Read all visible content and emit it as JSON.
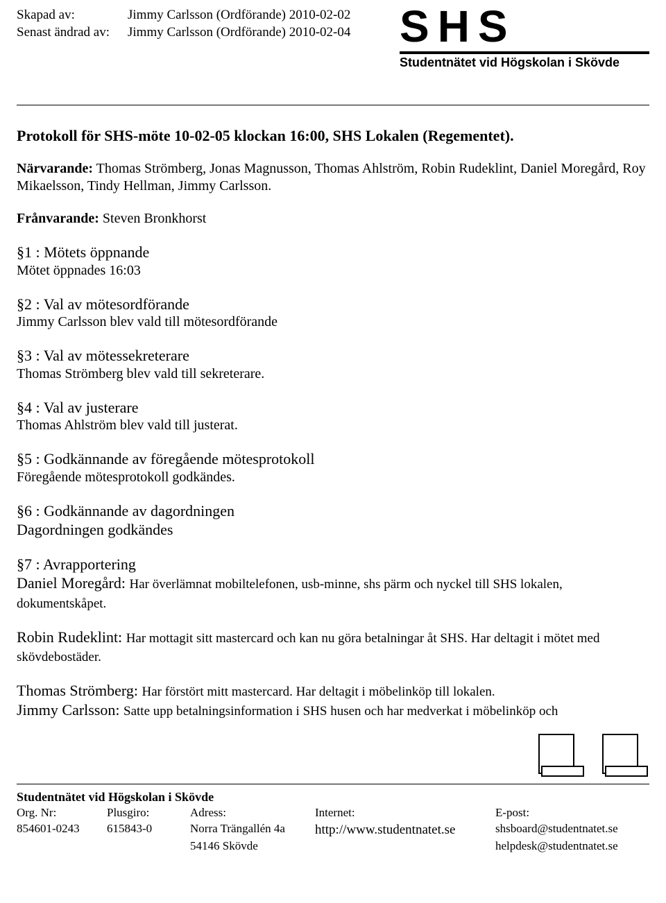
{
  "meta": {
    "created_label": "Skapad av:",
    "created_value": "Jimmy Carlsson (Ordförande) 2010-02-02",
    "modified_label": "Senast ändrad av:",
    "modified_value": "Jimmy Carlsson (Ordförande) 2010-02-04"
  },
  "logo": {
    "main": "SHS",
    "sub": "Studentnätet vid Högskolan i Skövde"
  },
  "title": "Protokoll för SHS-möte 10-02-05 klockan 16:00, SHS Lokalen (Regementet).",
  "narvarande_label": "Närvarande:",
  "narvarande_text": " Thomas Strömberg, Jonas Magnusson, Thomas Ahlström, Robin Rudeklint, Daniel Moregård, Roy Mikaelsson, Tindy Hellman, Jimmy Carlsson.",
  "franvarande_label": "Frånvarande:",
  "franvarande_text": " Steven Bronkhorst",
  "s1_head": "§1 : Mötets öppnande",
  "s1_body": "Mötet öppnades 16:03",
  "s2_head": "§2 : Val av mötesordförande",
  "s2_body": "Jimmy Carlsson blev vald till mötesordförande",
  "s3_head": "§3 : Val av mötessekreterare",
  "s3_body": "Thomas Strömberg blev vald till sekreterare.",
  "s4_head": "§4 : Val av justerare",
  "s4_body": "Thomas Ahlström blev vald till justerat.",
  "s5_head": "§5 : Godkännande av föregående mötesprotokoll",
  "s5_body": "Föregående mötesprotokoll godkändes.",
  "s6_head": "§6 : Godkännande av dagordningen",
  "s6_body": "Dagordningen godkändes",
  "s7_head": "§7 : Avrapportering",
  "s7_p1_name": "Daniel Moregård: ",
  "s7_p1_text": "Har överlämnat mobiltelefonen, usb-minne, shs pärm och nyckel till SHS lokalen, dokumentskåpet.",
  "s7_p2_name": "Robin Rudeklint: ",
  "s7_p2_text": "Har mottagit sitt mastercard och kan nu göra betalningar åt SHS. Har deltagit i mötet med skövdebostäder.",
  "s7_p3_name": "Thomas Strömberg: ",
  "s7_p3_text": "Har förstört mitt mastercard. Har deltagit i möbelinköp till lokalen.",
  "s7_p4_name": "Jimmy Carlsson: ",
  "s7_p4_text": "Satte upp betalningsinformation i SHS husen och har medverkat i möbelinköp och",
  "footer": {
    "title": "Studentnätet vid Högskolan i Skövde",
    "h1": "Org. Nr:",
    "h2": "Plusgiro:",
    "h3": "Adress:",
    "h4": "Internet:",
    "h5": "E-post:",
    "v1": "854601-0243",
    "v2": "615843-0",
    "v3a": "Norra Trängallén 4a",
    "v3b": "54146 Skövde",
    "v4": "http://www.studentnatet.se",
    "v5a": "shsboard@studentnatet.se",
    "v5b": "helpdesk@studentnatet.se"
  }
}
